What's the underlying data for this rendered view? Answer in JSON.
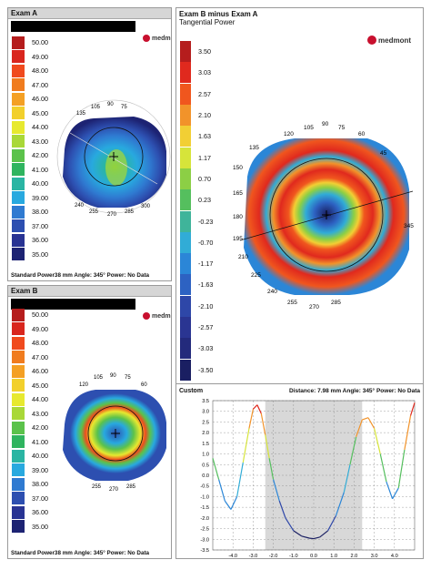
{
  "exam_a": {
    "title": "Exam A",
    "scale": [
      {
        "label": "50.00",
        "color": "#b51d1d"
      },
      {
        "label": "49.00",
        "color": "#d9261e"
      },
      {
        "label": "48.00",
        "color": "#f04a1e"
      },
      {
        "label": "47.00",
        "color": "#f07c1f"
      },
      {
        "label": "46.00",
        "color": "#f4a024"
      },
      {
        "label": "45.00",
        "color": "#f2d02c"
      },
      {
        "label": "44.00",
        "color": "#e7e92f"
      },
      {
        "label": "43.00",
        "color": "#a9d838"
      },
      {
        "label": "42.00",
        "color": "#5bc24b"
      },
      {
        "label": "41.00",
        "color": "#2fb45f"
      },
      {
        "label": "40.00",
        "color": "#2ab5a3"
      },
      {
        "label": "39.00",
        "color": "#28a9df"
      },
      {
        "label": "38.00",
        "color": "#2f7ad1"
      },
      {
        "label": "37.00",
        "color": "#2d4fb0"
      },
      {
        "label": "36.00",
        "color": "#283393"
      },
      {
        "label": "35.00",
        "color": "#1d2373"
      }
    ],
    "axis_labels": {
      "a90": "90",
      "a105": "105",
      "a75": "75",
      "a135": "135",
      "a240": "240",
      "a255": "255",
      "a270": "270",
      "a285": "285",
      "a300": "300"
    },
    "footer": "Standard Power38 mm Angle: 345° Power:  No Data"
  },
  "exam_b": {
    "title": "Exam B",
    "scale": [
      {
        "label": "50.00",
        "color": "#b51d1d"
      },
      {
        "label": "49.00",
        "color": "#d9261e"
      },
      {
        "label": "48.00",
        "color": "#f04a1e"
      },
      {
        "label": "47.00",
        "color": "#f07c1f"
      },
      {
        "label": "46.00",
        "color": "#f4a024"
      },
      {
        "label": "45.00",
        "color": "#f2d02c"
      },
      {
        "label": "44.00",
        "color": "#e7e92f"
      },
      {
        "label": "43.00",
        "color": "#a9d838"
      },
      {
        "label": "42.00",
        "color": "#5bc24b"
      },
      {
        "label": "41.00",
        "color": "#2fb45f"
      },
      {
        "label": "40.00",
        "color": "#2ab5a3"
      },
      {
        "label": "39.00",
        "color": "#28a9df"
      },
      {
        "label": "38.00",
        "color": "#2f7ad1"
      },
      {
        "label": "37.00",
        "color": "#2d4fb0"
      },
      {
        "label": "36.00",
        "color": "#283393"
      },
      {
        "label": "35.00",
        "color": "#1d2373"
      }
    ],
    "axis_labels": {
      "a90": "90",
      "a105": "105",
      "a75": "75",
      "a120": "120",
      "a60": "60",
      "a255": "255",
      "a270": "270",
      "a285": "285"
    },
    "footer": "Standard Power38 mm Angle: 345° Power:  No Data"
  },
  "difference": {
    "title": "Exam B minus Exam A",
    "subtitle": "Tangential Power",
    "logo_text": "medmont",
    "scale": [
      {
        "label": "3.50",
        "color": "#b51d1d"
      },
      {
        "label": "3.03",
        "color": "#e0291e"
      },
      {
        "label": "2.57",
        "color": "#f0561e"
      },
      {
        "label": "2.10",
        "color": "#f2932a"
      },
      {
        "label": "1.63",
        "color": "#f2cf34"
      },
      {
        "label": "1.17",
        "color": "#d6e43a"
      },
      {
        "label": "0.70",
        "color": "#8ccf45"
      },
      {
        "label": "0.23",
        "color": "#55bf5e"
      },
      {
        "label": "-0.23",
        "color": "#3fb49a"
      },
      {
        "label": "-0.70",
        "color": "#31acd6"
      },
      {
        "label": "-1.17",
        "color": "#2b86d7"
      },
      {
        "label": "-1.63",
        "color": "#2d62c2"
      },
      {
        "label": "-2.10",
        "color": "#2e47a8"
      },
      {
        "label": "-2.57",
        "color": "#2a3592"
      },
      {
        "label": "-3.03",
        "color": "#232a7c"
      },
      {
        "label": "-3.50",
        "color": "#1a1f62"
      }
    ],
    "axis_labels": {
      "a90": "90",
      "a105": "105",
      "a75": "75",
      "a120": "120",
      "a60": "60",
      "a135": "135",
      "a45": "45",
      "a150": "150",
      "a165": "165",
      "a180": "180",
      "a195": "195",
      "a210": "210",
      "a225": "225",
      "a240": "240",
      "a255": "255",
      "a270": "270",
      "a285": "285",
      "a345": "345"
    }
  },
  "profile": {
    "title": "Custom",
    "readout": "Distance: 7.98 mm Angle: 345° Power:  No Data",
    "chart_data": {
      "type": "line",
      "xlim": [
        -5,
        5
      ],
      "ylim": [
        -3.5,
        3.5
      ],
      "x_ticks": [
        "-4.0",
        "-3.0",
        "-2.0",
        "-1.0",
        "0.0",
        "1.0",
        "2.0",
        "3.0",
        "4.0"
      ],
      "y_ticks": [
        "3.5",
        "3.0",
        "2.5",
        "2.0",
        "1.5",
        "1.0",
        "0.5",
        "0.0",
        "-0.5",
        "-1.0",
        "-1.5",
        "-2.0",
        "-2.5",
        "-3.0",
        "-3.5"
      ],
      "shaded_x_range": [
        -2.4,
        2.4
      ],
      "points": [
        [
          -5.0,
          0.8
        ],
        [
          -4.7,
          -0.2
        ],
        [
          -4.4,
          -1.2
        ],
        [
          -4.1,
          -1.6
        ],
        [
          -3.8,
          -1.0
        ],
        [
          -3.5,
          0.6
        ],
        [
          -3.2,
          2.2
        ],
        [
          -3.0,
          3.1
        ],
        [
          -2.8,
          3.3
        ],
        [
          -2.6,
          2.9
        ],
        [
          -2.4,
          1.9
        ],
        [
          -2.2,
          0.8
        ],
        [
          -2.0,
          -0.2
        ],
        [
          -1.7,
          -1.2
        ],
        [
          -1.4,
          -2.0
        ],
        [
          -1.0,
          -2.6
        ],
        [
          -0.6,
          -2.85
        ],
        [
          -0.2,
          -2.95
        ],
        [
          0.0,
          -2.97
        ],
        [
          0.3,
          -2.9
        ],
        [
          0.7,
          -2.6
        ],
        [
          1.1,
          -1.9
        ],
        [
          1.5,
          -0.8
        ],
        [
          1.8,
          0.5
        ],
        [
          2.1,
          1.8
        ],
        [
          2.4,
          2.6
        ],
        [
          2.7,
          2.7
        ],
        [
          3.0,
          2.2
        ],
        [
          3.3,
          1.0
        ],
        [
          3.6,
          -0.3
        ],
        [
          3.9,
          -1.1
        ],
        [
          4.2,
          -0.6
        ],
        [
          4.5,
          1.2
        ],
        [
          4.8,
          2.8
        ],
        [
          5.0,
          3.4
        ]
      ]
    }
  }
}
